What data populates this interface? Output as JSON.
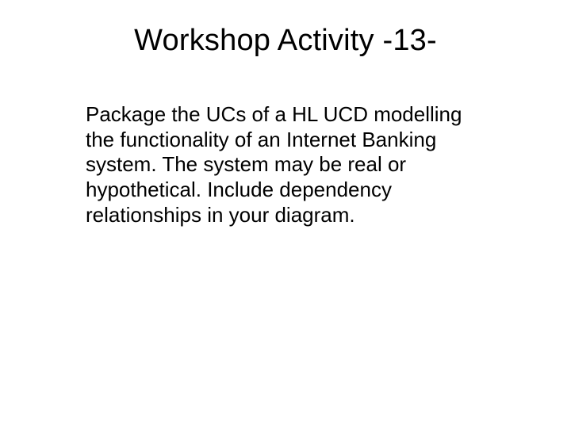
{
  "slide": {
    "title": "Workshop Activity -13-",
    "body": "Package the UCs of a HL UCD modelling the functionality of an Internet Banking system. The system may be real or hypothetical. Include dependency relationships in your diagram.",
    "title_fontsize": 38,
    "body_fontsize": 26,
    "background_color": "#ffffff",
    "text_color": "#000000"
  }
}
